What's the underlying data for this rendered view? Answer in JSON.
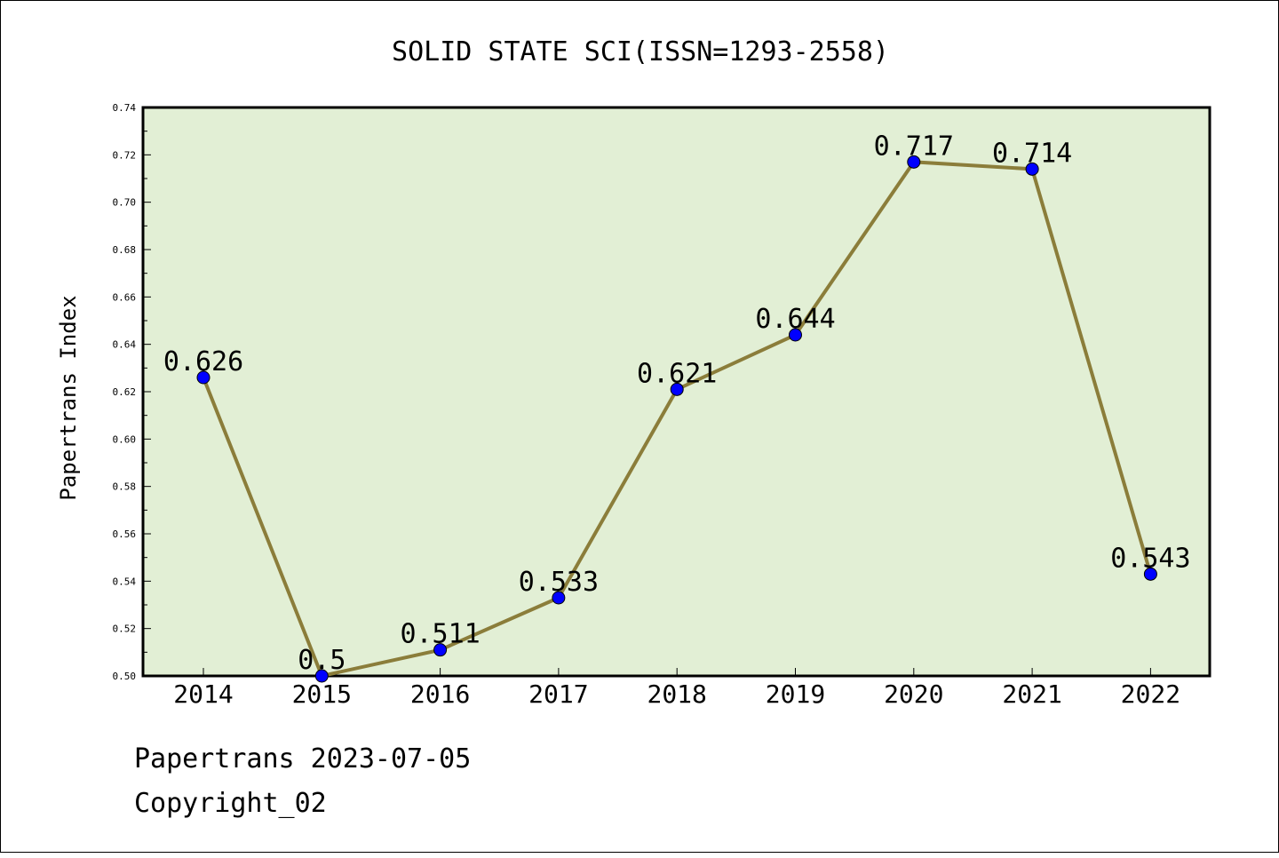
{
  "chart_data": {
    "type": "line",
    "title": "SOLID STATE SCI(ISSN=1293-2558)",
    "ylabel": "Papertrans Index",
    "xlabel": "",
    "categories": [
      "2014",
      "2015",
      "2016",
      "2017",
      "2018",
      "2019",
      "2020",
      "2021",
      "2022"
    ],
    "values": [
      0.626,
      0.5,
      0.511,
      0.533,
      0.621,
      0.644,
      0.717,
      0.714,
      0.543
    ],
    "data_labels": [
      "0.626",
      "0.5",
      "0.511",
      "0.533",
      "0.621",
      "0.644",
      "0.717",
      "0.714",
      "0.543"
    ],
    "ylim": [
      0.5,
      0.74
    ],
    "yticks": [
      "0.50",
      "0.52",
      "0.54",
      "0.56",
      "0.58",
      "0.60",
      "0.62",
      "0.64",
      "0.66",
      "0.68",
      "0.70",
      "0.72",
      "0.74"
    ],
    "grid": false,
    "colors": {
      "plot_bg": "#e2efd5",
      "line": "#8b7d3a",
      "marker": "#0000ff"
    }
  },
  "footer": {
    "date_line": "Papertrans 2023-07-05",
    "copyright": "Copyright_02"
  }
}
